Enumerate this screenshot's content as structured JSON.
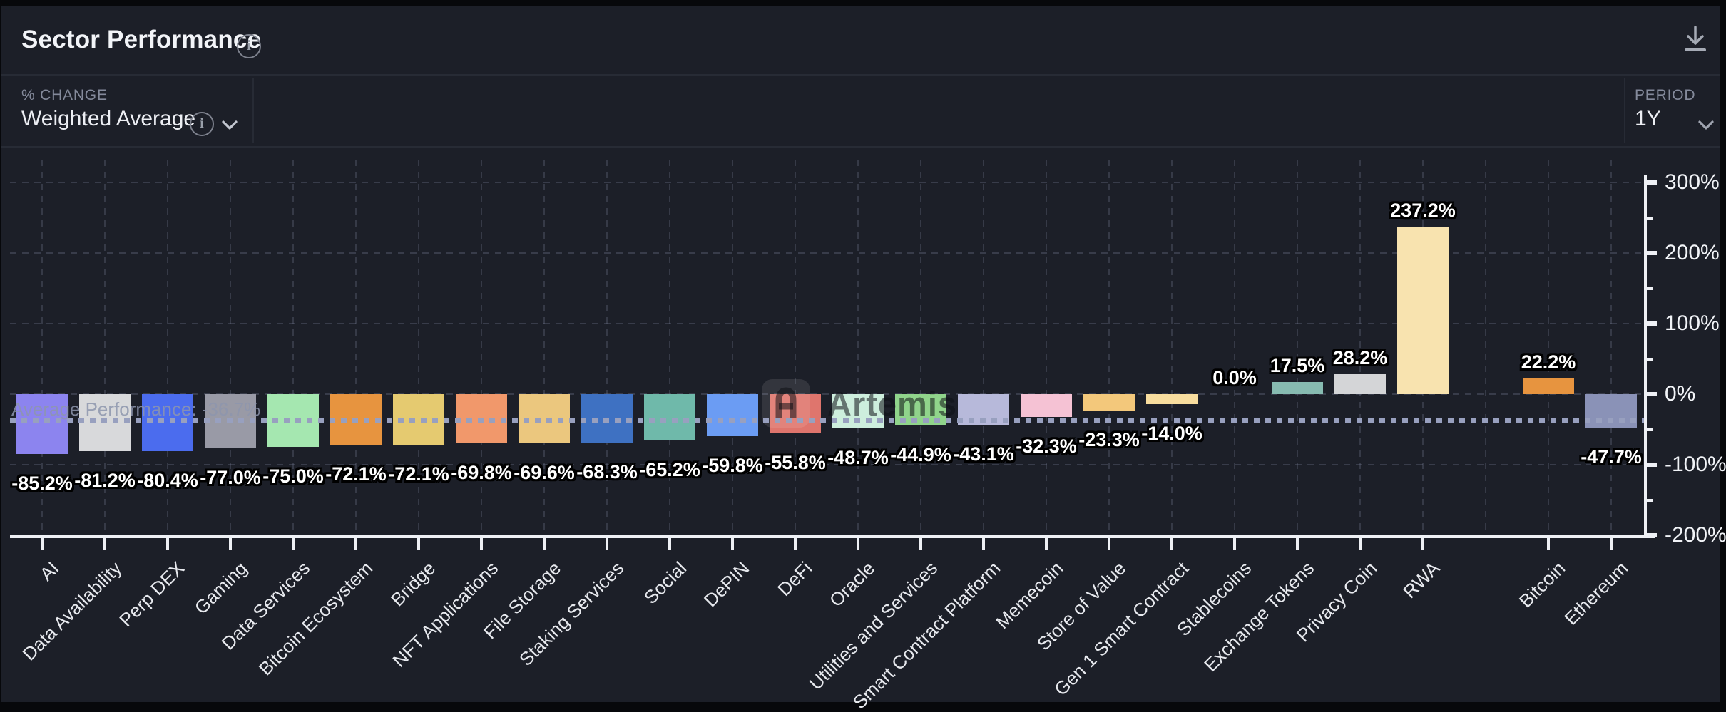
{
  "header": {
    "title": "Sector Performance"
  },
  "controls": {
    "metric": {
      "label": "% CHANGE",
      "value": "Weighted Average"
    },
    "period": {
      "label": "PERIOD",
      "value": "1Y"
    }
  },
  "watermark": {
    "brand": "Artemis"
  },
  "colors": {
    "panel_bg": "#1c1f28",
    "outer_bg": "#07080b",
    "border": "#272b35",
    "axis": "#eef0f5",
    "muted_text": "#848a9b",
    "average_line": "#98a0bf"
  },
  "chart_data": {
    "type": "bar",
    "title": "Sector Performance",
    "metric": "% Change (Weighted Average)",
    "period": "1Y",
    "ylabel": "% Change",
    "ylim": [
      -200,
      300
    ],
    "yticks_major": [
      300,
      200,
      100,
      0,
      -100,
      -200
    ],
    "yticks_minor": [
      250,
      150,
      50,
      -50,
      -150
    ],
    "gridlines": [
      300,
      200,
      100,
      0,
      -100
    ],
    "grid": true,
    "legend_position": "none",
    "average_line": {
      "label": "Average Performance: -36.7%",
      "value": -36.7
    },
    "categories": [
      "AI",
      "Data Availability",
      "Perp DEX",
      "Gaming",
      "Data Services",
      "Bitcoin Ecosystem",
      "Bridge",
      "NFT Applications",
      "File Storage",
      "Staking Services",
      "Social",
      "DePIN",
      "DeFi",
      "Oracle",
      "Utilities and Services",
      "Smart Contract Platform",
      "Memecoin",
      "Store of Value",
      "Gen 1 Smart Contract",
      "Stablecoins",
      "Exchange Tokens",
      "Privacy Coin",
      "RWA",
      "Bitcoin",
      "Ethereum"
    ],
    "values": [
      -85.2,
      -81.2,
      -80.4,
      -77.0,
      -75.0,
      -72.1,
      -72.1,
      -69.8,
      -69.6,
      -68.3,
      -65.2,
      -59.8,
      -55.8,
      -48.7,
      -44.9,
      -43.1,
      -32.3,
      -23.3,
      -14.0,
      0.0,
      17.5,
      28.2,
      237.2,
      22.2,
      -47.7
    ],
    "labels": [
      "-85.2%",
      "-81.2%",
      "-80.4%",
      "-77.0%",
      "-75.0%",
      "-72.1%",
      "-72.1%",
      "-69.8%",
      "-69.6%",
      "-68.3%",
      "-65.2%",
      "-59.8%",
      "-55.8%",
      "-48.7%",
      "-44.9%",
      "-43.1%",
      "-32.3%",
      "-23.3%",
      "-14.0%",
      "0.0%",
      "17.5%",
      "28.2%",
      "237.2%",
      "22.2%",
      "-47.7%"
    ],
    "colors": [
      "#8c84ef",
      "#d8d9db",
      "#4b6cee",
      "#999aa6",
      "#a5e7b0",
      "#e7943f",
      "#e5ca70",
      "#f1986b",
      "#ebc77e",
      "#3e71c2",
      "#6fb9aa",
      "#6b9cf3",
      "#df756d",
      "#cdeedd",
      "#90d48b",
      "#b7b9da",
      "#f5c2d4",
      "#f3c87b",
      "#f8dd9e",
      null,
      "#87bbb1",
      "#d4d5d7",
      "#f8e3af",
      "#e7943f",
      "#8a92b7"
    ],
    "group_gap_after_index": 22
  }
}
